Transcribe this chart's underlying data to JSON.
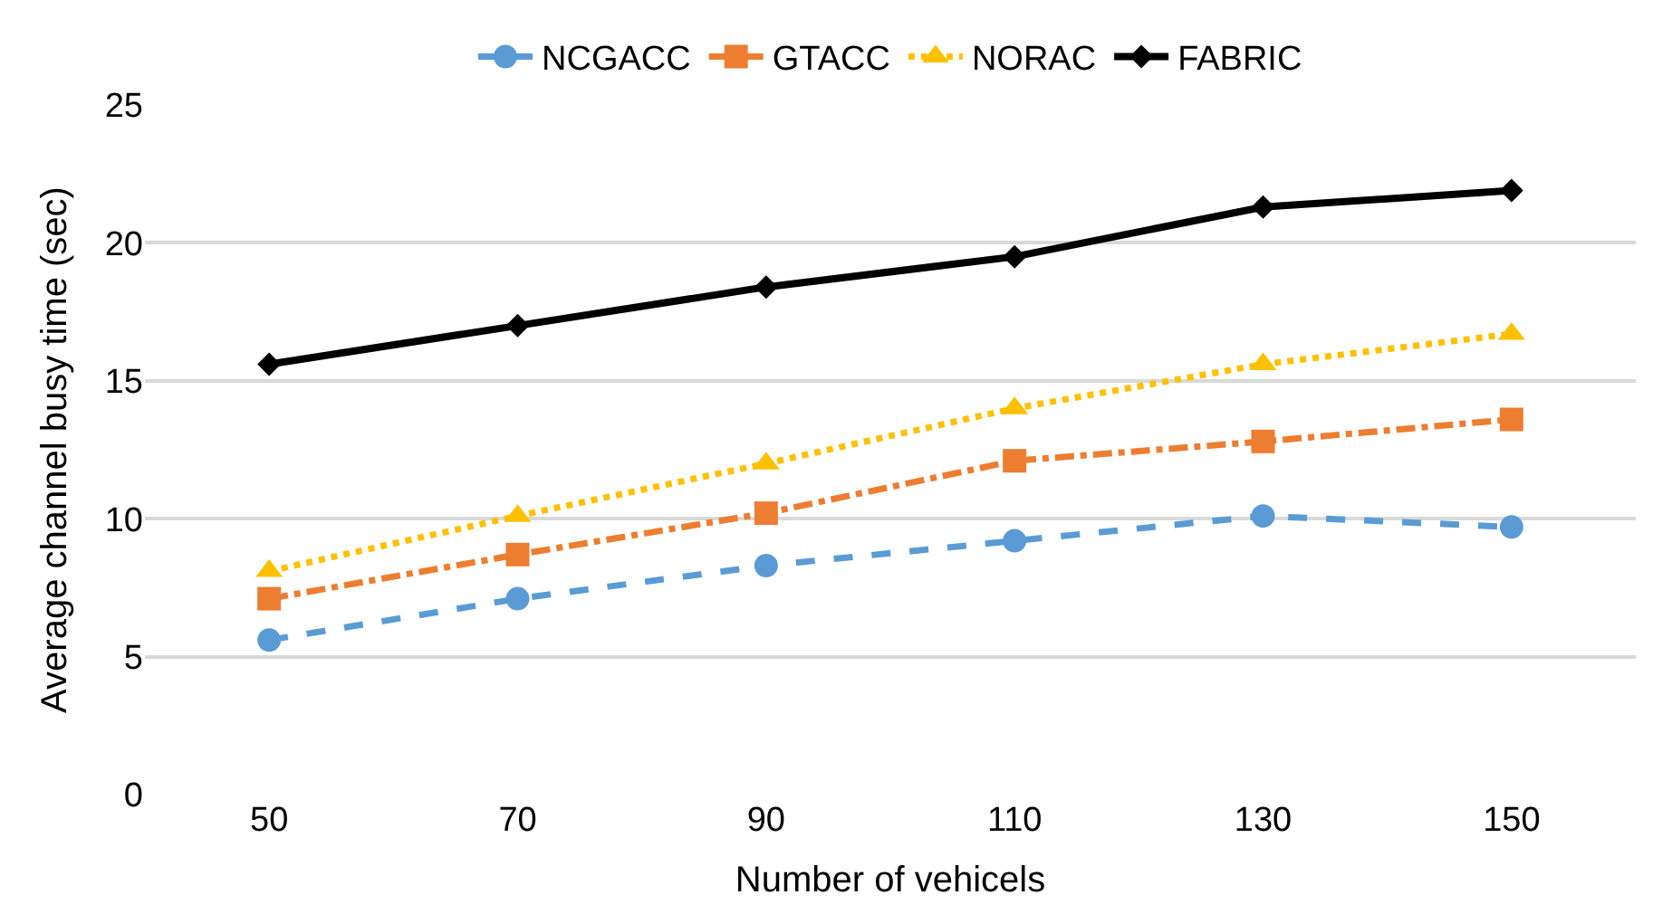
{
  "chart_data": {
    "type": "line",
    "xlabel": "Number of vehicels",
    "ylabel": "Average channel busy time (sec)",
    "categories": [
      "50",
      "70",
      "90",
      "110",
      "130",
      "150"
    ],
    "series": [
      {
        "name": "NCGACC",
        "color": "#5b9bd5",
        "marker": "circle",
        "line_style": "dashed",
        "values": [
          5.6,
          7.1,
          8.3,
          9.2,
          10.1,
          9.7
        ]
      },
      {
        "name": "GTACC",
        "color": "#ed7d31",
        "marker": "square",
        "line_style": "dashdot",
        "values": [
          7.1,
          8.7,
          10.2,
          12.1,
          12.8,
          13.6
        ]
      },
      {
        "name": "NORAC",
        "color": "#ffc000",
        "marker": "triangle",
        "line_style": "dotted",
        "values": [
          8.1,
          10.1,
          12.0,
          14.0,
          15.6,
          16.7
        ]
      },
      {
        "name": "FABRIC",
        "color": "#000000",
        "marker": "diamond",
        "line_style": "solid",
        "values": [
          15.6,
          17.0,
          18.4,
          19.5,
          21.3,
          21.9
        ]
      }
    ],
    "ylim": [
      0,
      25
    ],
    "yticks": [
      0,
      5,
      10,
      15,
      20,
      25
    ],
    "grid": "y",
    "legend": "top"
  }
}
